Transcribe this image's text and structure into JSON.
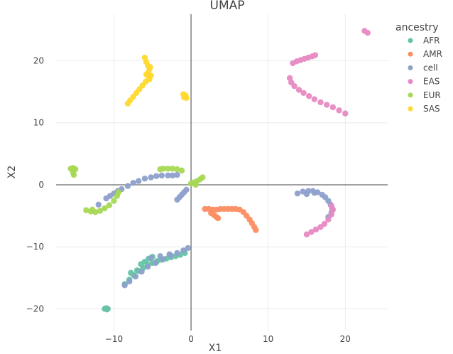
{
  "chart_data": {
    "type": "scatter",
    "title": "UMAP",
    "xlabel": "X1",
    "ylabel": "X2",
    "xlim": [
      -17.5,
      25.5
    ],
    "ylim": [
      -23.5,
      27.5
    ],
    "xticks": [
      -10,
      0,
      10,
      20
    ],
    "yticks": [
      -20,
      -10,
      0,
      10,
      20
    ],
    "xtick_labels": [
      "−10",
      "0",
      "10",
      "20"
    ],
    "ytick_labels": [
      "−20",
      "−10",
      "0",
      "10",
      "20"
    ],
    "grid": true,
    "zero_lines": true,
    "legend": {
      "title": "ancestry",
      "placement": "right"
    },
    "series": [
      {
        "name": "AFR",
        "color": "#66c2a5",
        "points": [
          [
            -11.2,
            -20.0
          ],
          [
            -10.9,
            -20.1
          ],
          [
            -11.0,
            -19.9
          ],
          [
            -10.8,
            -20.0
          ],
          [
            -8.6,
            -16.0
          ],
          [
            -8.0,
            -15.3
          ],
          [
            -7.4,
            -14.6
          ],
          [
            -6.8,
            -13.9
          ],
          [
            -6.2,
            -13.4
          ],
          [
            -5.6,
            -12.9
          ],
          [
            -5.0,
            -12.6
          ],
          [
            -4.4,
            -12.3
          ],
          [
            -3.8,
            -12.1
          ],
          [
            -3.2,
            -11.9
          ],
          [
            -2.6,
            -11.7
          ],
          [
            -2.0,
            -11.5
          ],
          [
            -1.4,
            -11.3
          ],
          [
            -0.8,
            -11.0
          ],
          [
            -6.5,
            -12.8
          ],
          [
            -6.0,
            -12.4
          ],
          [
            -5.5,
            -11.9
          ],
          [
            -5.0,
            -11.6
          ],
          [
            -7.8,
            -14.2
          ],
          [
            -7.0,
            -13.8
          ],
          [
            -4.5,
            -12.5
          ]
        ]
      },
      {
        "name": "AMR",
        "color": "#fc8d62",
        "points": [
          [
            1.8,
            -3.9
          ],
          [
            2.3,
            -3.9
          ],
          [
            2.8,
            -4.0
          ],
          [
            3.3,
            -4.0
          ],
          [
            3.8,
            -3.9
          ],
          [
            4.3,
            -3.9
          ],
          [
            4.8,
            -3.9
          ],
          [
            5.3,
            -3.9
          ],
          [
            5.8,
            -3.9
          ],
          [
            6.3,
            -4.0
          ],
          [
            6.8,
            -4.4
          ],
          [
            7.2,
            -5.0
          ],
          [
            7.6,
            -5.6
          ],
          [
            7.9,
            -6.2
          ],
          [
            8.2,
            -6.8
          ],
          [
            8.4,
            -7.3
          ],
          [
            2.6,
            -4.6
          ],
          [
            3.0,
            -4.9
          ],
          [
            3.3,
            -5.2
          ],
          [
            3.5,
            -5.4
          ]
        ]
      },
      {
        "name": "cell",
        "color": "#8da0cb",
        "points": [
          [
            -12.0,
            -3.2
          ],
          [
            -11.0,
            -2.2
          ],
          [
            -10.0,
            -1.4
          ],
          [
            -9.0,
            -0.7
          ],
          [
            -8.2,
            -0.2
          ],
          [
            -7.5,
            0.3
          ],
          [
            -6.8,
            0.6
          ],
          [
            -6.0,
            1.0
          ],
          [
            -5.2,
            1.2
          ],
          [
            -4.5,
            1.4
          ],
          [
            -3.8,
            1.5
          ],
          [
            -3.0,
            1.5
          ],
          [
            -2.4,
            1.5
          ],
          [
            -1.8,
            1.6
          ],
          [
            -10.5,
            -1.8
          ],
          [
            -9.5,
            -1.0
          ],
          [
            -1.8,
            -2.4
          ],
          [
            -1.5,
            -2.0
          ],
          [
            -1.2,
            -1.6
          ],
          [
            -0.9,
            -1.2
          ],
          [
            -0.6,
            -0.8
          ],
          [
            -8.6,
            -16.2
          ],
          [
            -8.0,
            -15.6
          ],
          [
            -7.2,
            -14.8
          ],
          [
            -6.4,
            -14.0
          ],
          [
            -5.6,
            -13.2
          ],
          [
            -4.6,
            -12.6
          ],
          [
            -3.6,
            -12.0
          ],
          [
            -2.6,
            -11.4
          ],
          [
            -1.8,
            -11.0
          ],
          [
            -1.0,
            -10.6
          ],
          [
            -0.4,
            -10.2
          ],
          [
            -5.2,
            -11.8
          ],
          [
            -4.0,
            -11.5
          ],
          [
            -2.8,
            -11.2
          ],
          [
            13.8,
            -1.4
          ],
          [
            14.5,
            -1.1
          ],
          [
            15.2,
            -1.0
          ],
          [
            15.8,
            -1.0
          ],
          [
            16.4,
            -1.2
          ],
          [
            17.0,
            -1.6
          ],
          [
            17.4,
            -2.0
          ],
          [
            17.8,
            -2.6
          ],
          [
            18.1,
            -3.2
          ],
          [
            18.3,
            -3.8
          ],
          [
            18.2,
            -4.5
          ],
          [
            17.8,
            -5.2
          ],
          [
            16.0,
            -1.3
          ],
          [
            15.0,
            -1.5
          ]
        ]
      },
      {
        "name": "EAS",
        "color": "#e78ac3",
        "points": [
          [
            22.5,
            24.8
          ],
          [
            22.9,
            24.5
          ],
          [
            13.2,
            19.6
          ],
          [
            13.7,
            19.9
          ],
          [
            14.2,
            20.1
          ],
          [
            14.7,
            20.3
          ],
          [
            15.2,
            20.5
          ],
          [
            15.7,
            20.7
          ],
          [
            16.1,
            20.9
          ],
          [
            12.8,
            17.2
          ],
          [
            13.0,
            16.5
          ],
          [
            13.4,
            15.9
          ],
          [
            14.0,
            15.3
          ],
          [
            14.6,
            14.8
          ],
          [
            15.3,
            14.3
          ],
          [
            16.0,
            13.8
          ],
          [
            16.8,
            13.3
          ],
          [
            17.6,
            12.9
          ],
          [
            18.4,
            12.5
          ],
          [
            19.2,
            12.0
          ],
          [
            20.0,
            11.5
          ],
          [
            15.0,
            -8.0
          ],
          [
            15.6,
            -7.6
          ],
          [
            16.2,
            -7.2
          ],
          [
            16.8,
            -6.8
          ],
          [
            17.3,
            -6.3
          ],
          [
            17.8,
            -5.6
          ],
          [
            18.2,
            -4.8
          ],
          [
            18.4,
            -4.0
          ],
          [
            18.2,
            -3.4
          ]
        ]
      },
      {
        "name": "EUR",
        "color": "#a6d854",
        "points": [
          [
            -15.6,
            2.6
          ],
          [
            -15.3,
            2.7
          ],
          [
            -15.0,
            2.5
          ],
          [
            -15.3,
            2.0
          ],
          [
            -15.2,
            1.6
          ],
          [
            -13.6,
            -4.1
          ],
          [
            -13.0,
            -4.3
          ],
          [
            -12.4,
            -4.4
          ],
          [
            -11.8,
            -4.2
          ],
          [
            -11.2,
            -3.8
          ],
          [
            -10.6,
            -3.3
          ],
          [
            -10.0,
            -2.6
          ],
          [
            -9.6,
            -1.8
          ],
          [
            -9.4,
            -1.2
          ],
          [
            -12.8,
            -4.0
          ],
          [
            -3.6,
            2.6
          ],
          [
            -3.0,
            2.6
          ],
          [
            -2.4,
            2.6
          ],
          [
            -1.8,
            2.5
          ],
          [
            -1.2,
            2.3
          ],
          [
            -4.0,
            2.5
          ],
          [
            0.0,
            0.2
          ],
          [
            0.4,
            0.4
          ],
          [
            0.8,
            0.6
          ],
          [
            1.2,
            0.9
          ],
          [
            1.5,
            1.2
          ],
          [
            0.6,
            0.0
          ]
        ]
      },
      {
        "name": "SAS",
        "color": "#ffd92f",
        "points": [
          [
            -6.0,
            20.5
          ],
          [
            -5.8,
            19.8
          ],
          [
            -5.6,
            19.2
          ],
          [
            -5.4,
            18.6
          ],
          [
            -5.6,
            18.0
          ],
          [
            -5.2,
            17.6
          ],
          [
            -5.5,
            17.2
          ],
          [
            -5.9,
            16.6
          ],
          [
            -6.3,
            16.0
          ],
          [
            -6.7,
            15.4
          ],
          [
            -7.1,
            14.8
          ],
          [
            -7.5,
            14.2
          ],
          [
            -7.9,
            13.6
          ],
          [
            -8.2,
            13.1
          ],
          [
            -5.4,
            17.0
          ],
          [
            -5.8,
            17.8
          ],
          [
            -5.3,
            19.0
          ],
          [
            -1.0,
            14.6
          ],
          [
            -0.7,
            14.4
          ],
          [
            -0.9,
            14.1
          ],
          [
            -0.6,
            14.0
          ]
        ]
      }
    ]
  }
}
